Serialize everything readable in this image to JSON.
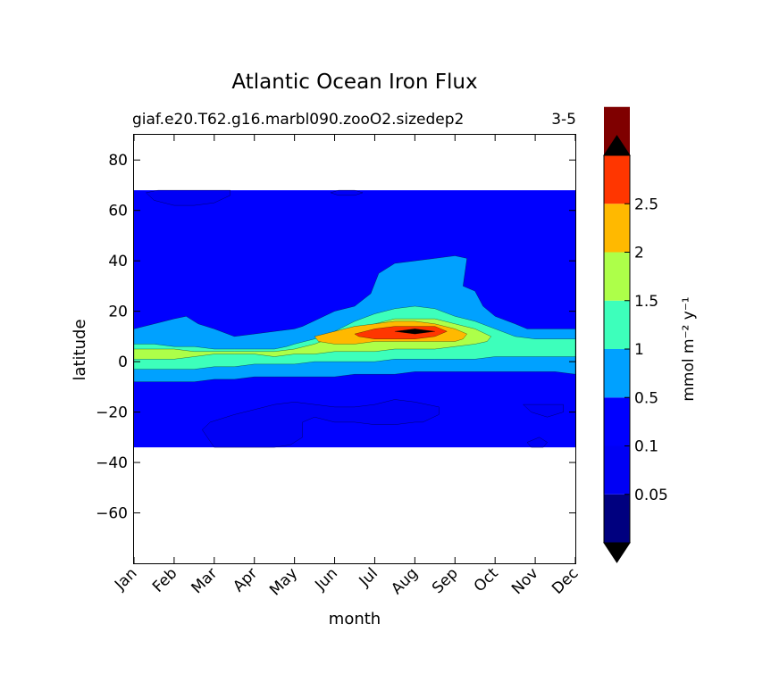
{
  "chart_data": {
    "type": "heatmap",
    "subtype": "filled-contour",
    "title": "Atlantic Ocean Iron Flux",
    "subtitle_left": "giaf.e20.T62.g16.marbl090.zooO2.sizedep2",
    "subtitle_right": "3-5",
    "xlabel": "month",
    "ylabel": "latitude",
    "x_categories": [
      "Jan",
      "Feb",
      "Mar",
      "Apr",
      "May",
      "Jun",
      "Jul",
      "Aug",
      "Sep",
      "Oct",
      "Nov",
      "Dec"
    ],
    "xlim": [
      0,
      11
    ],
    "ylim": [
      -80,
      90
    ],
    "y_ticks": [
      80,
      60,
      40,
      20,
      0,
      -20,
      -40,
      -60
    ],
    "y_tick_labels": [
      "80",
      "60",
      "40",
      "20",
      "0",
      "−20",
      "−40",
      "−60"
    ],
    "data_lat_range": [
      -34,
      68
    ],
    "colorbar": {
      "label": "mmol m⁻² y⁻¹",
      "levels": [
        0,
        0.05,
        0.1,
        0.5,
        1,
        1.5,
        2,
        2.5,
        3
      ],
      "tick_labels": [
        "0.05",
        "0.1",
        "0.5",
        "1",
        "1.5",
        "2",
        "2.5"
      ],
      "colors": [
        "#00007f",
        "#0000f5",
        "#0000ff",
        "#00a1ff",
        "#3dffbb",
        "#adff49",
        "#ffb900",
        "#ff3600",
        "#7f0000"
      ],
      "extend": "both",
      "extend_low_color": "#000000",
      "extend_high_color": "#000000"
    },
    "field": {
      "background_level": "0.1-0.5",
      "regions": [
        {
          "level": "0.05-0.1",
          "x": [
            0.3,
            0.6,
            1.0,
            1.5,
            2.0,
            2.4,
            2.4,
            2.0,
            1.5,
            1.0,
            0.5
          ],
          "y": [
            67,
            68,
            68,
            68,
            68,
            68,
            66,
            63,
            62,
            62,
            64
          ]
        },
        {
          "level": "0.05-0.1",
          "x": [
            4.9,
            5.1,
            5.5,
            5.7,
            5.5,
            5.1
          ],
          "y": [
            67,
            68,
            68,
            67,
            66,
            66
          ]
        },
        {
          "level": "0.05-0.1",
          "x": [
            1.9,
            2.5,
            3.0,
            3.5,
            4.0,
            4.5,
            5.0,
            5.5,
            6.0,
            6.5,
            7.0,
            7.6,
            7.6,
            7.2,
            7.0,
            6.5,
            6.0,
            5.5,
            5.0,
            4.5,
            4.2,
            4.2,
            3.9,
            3.5,
            3.0,
            2.5,
            2.0,
            1.7
          ],
          "y": [
            -24,
            -21,
            -19,
            -17,
            -16,
            -17,
            -18,
            -18,
            -17,
            -15,
            -16,
            -18,
            -21,
            -24,
            -24,
            -25,
            -25,
            -24,
            -24,
            -22,
            -24,
            -30,
            -33,
            -34,
            -34,
            -34,
            -34,
            -27
          ]
        },
        {
          "level": "0.05-0.1",
          "x": [
            9.7,
            10.2,
            10.7,
            10.7,
            10.3,
            9.9
          ],
          "y": [
            -17,
            -17,
            -17,
            -20,
            -22,
            -20
          ]
        },
        {
          "level": "0.05-0.1",
          "x": [
            9.8,
            10.1,
            10.3,
            10.2,
            9.9
          ],
          "y": [
            -32,
            -30,
            -32,
            -34,
            -34
          ]
        },
        {
          "level": "0.5-1",
          "x": [
            0,
            0.5,
            1.0,
            1.3,
            1.6,
            2.0,
            2.5,
            3.0,
            3.5,
            4.0,
            4.2,
            4.6,
            5.0,
            5.5,
            5.9,
            6.1,
            6.5,
            7.0,
            7.5,
            8.0,
            8.3,
            8.2,
            8.5,
            8.7,
            9.0,
            9.5,
            9.8,
            10.0,
            10.5,
            11.0,
            11.0,
            10.5,
            10.0,
            9.5,
            9.0,
            8.5,
            8.0,
            7.5,
            7.0,
            6.5,
            6.0,
            5.5,
            5.0,
            4.5,
            4.0,
            3.5,
            3.0,
            2.5,
            2.0,
            1.5,
            1.0,
            0.5,
            0
          ],
          "y": [
            13,
            15,
            17,
            18,
            15,
            13,
            10,
            11,
            12,
            13,
            14,
            17,
            20,
            22,
            27,
            35,
            39,
            40,
            41,
            42,
            41,
            30,
            28,
            22,
            18,
            15,
            13,
            13,
            13,
            13,
            -5,
            -4,
            -4,
            -4,
            -4,
            -4,
            -4,
            -4,
            -4,
            -5,
            -5,
            -5,
            -6,
            -6,
            -6,
            -6,
            -6,
            -7,
            -7,
            -8,
            -8,
            -8,
            -8
          ]
        },
        {
          "level": "1-1.5",
          "x": [
            0,
            0.5,
            1.0,
            1.5,
            2.0,
            2.5,
            3.0,
            3.5,
            3.8,
            4.0,
            4.5,
            5.0,
            5.5,
            6.0,
            6.5,
            7.0,
            7.5,
            8.0,
            8.5,
            9.0,
            9.5,
            10.0,
            10.5,
            11.0,
            11.0,
            10.5,
            10.0,
            9.5,
            9.0,
            8.5,
            8.0,
            7.5,
            7.0,
            6.5,
            6.0,
            5.5,
            5.0,
            4.5,
            4.0,
            3.5,
            3.0,
            2.5,
            2.0,
            1.5,
            1.0,
            0.5,
            0
          ],
          "y": [
            7,
            7,
            6,
            6,
            5,
            5,
            5,
            5,
            6,
            7,
            9,
            12,
            16,
            19,
            21,
            22,
            21,
            18,
            16,
            13,
            10,
            9,
            9,
            9,
            2,
            2,
            2,
            2,
            2,
            1,
            1,
            1,
            1,
            1,
            0,
            0,
            0,
            0,
            -1,
            -1,
            -1,
            -2,
            -2,
            -3,
            -3,
            -3,
            -3
          ]
        },
        {
          "level": "1.5-2",
          "x": [
            0,
            0.5,
            1.0,
            1.5,
            2.0,
            2.5,
            3.0,
            3.5,
            4.0,
            4.5,
            5.0,
            5.5,
            6.0,
            6.5,
            7.0,
            7.5,
            8.0,
            8.5,
            8.9,
            8.8,
            8.5,
            8.0,
            7.5,
            7.0,
            6.5,
            6.0,
            5.5,
            5.0,
            4.5,
            4.0,
            3.5,
            3.0,
            2.5,
            2.0,
            1.5,
            1.0,
            0.5,
            0
          ],
          "y": [
            5,
            5,
            5,
            4,
            4,
            4,
            4,
            4,
            5,
            7,
            10,
            13,
            15,
            17,
            17,
            17,
            15,
            13,
            10,
            8,
            7,
            6,
            5,
            5,
            5,
            4,
            4,
            4,
            3,
            3,
            2,
            3,
            3,
            3,
            2,
            1,
            1,
            1
          ]
        },
        {
          "level": "2-2.5",
          "x": [
            4.5,
            5.0,
            5.5,
            6.0,
            6.5,
            7.0,
            7.5,
            8.0,
            8.3,
            8.2,
            8.0,
            7.5,
            7.0,
            6.5,
            6.0,
            5.5,
            5.0,
            4.6
          ],
          "y": [
            10,
            12,
            14,
            15,
            16,
            16,
            15,
            13,
            11,
            9,
            8,
            8,
            8,
            8,
            8,
            7,
            7,
            8
          ]
        },
        {
          "level": "2.5-3",
          "x": [
            5.5,
            6.0,
            6.5,
            7.0,
            7.5,
            7.8,
            7.5,
            7.0,
            6.5,
            6.0,
            5.6
          ],
          "y": [
            11,
            13,
            14,
            14,
            14,
            12,
            10,
            9,
            9,
            9,
            10
          ]
        },
        {
          "level": ">3",
          "x": [
            6.5,
            7.0,
            7.5,
            7.0
          ],
          "y": [
            12,
            13,
            12,
            11
          ]
        }
      ]
    }
  }
}
